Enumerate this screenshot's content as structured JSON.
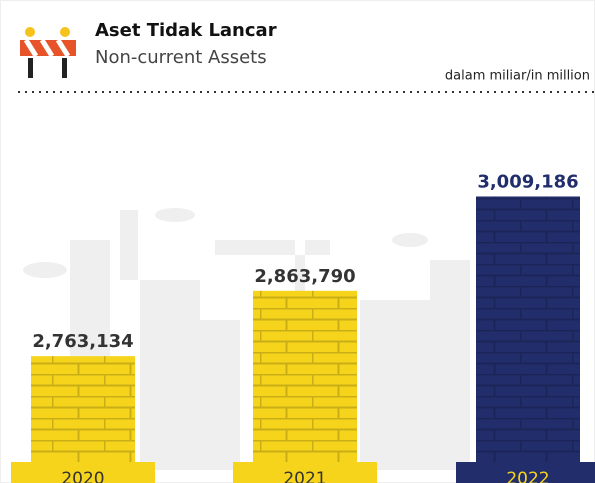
{
  "chart_data": {
    "type": "bar",
    "title": "Aset Tidak Lancar",
    "subtitle": "Non-current Assets",
    "unit": "dalam miliar/in million",
    "categories": [
      "2020",
      "2021",
      "2022"
    ],
    "values": [
      2763134,
      2863790,
      3009186
    ],
    "value_labels": [
      "2,763,134",
      "2,863,790",
      "3,009,186"
    ],
    "colors": [
      "#f6d41c",
      "#f6d41c",
      "#222d6b"
    ],
    "ylim": [
      2600000,
      3050000
    ]
  }
}
